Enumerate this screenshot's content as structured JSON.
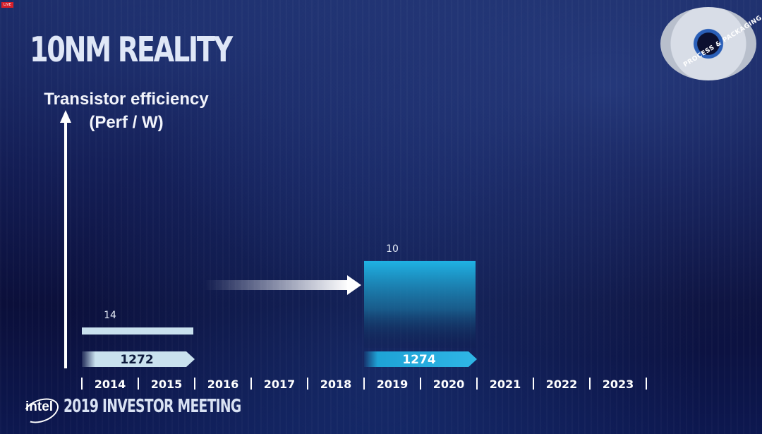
{
  "live_badge": "LIVE",
  "title": "10NM REALITY",
  "badge_text": "PROCESS & PACKAGING",
  "footer": {
    "logo": "intel",
    "event": "2019 INVESTOR MEETING"
  },
  "chart_data": {
    "type": "bar",
    "ylabel_line1": "Transistor efficiency",
    "ylabel_line2": "(Perf / W)",
    "categories": [
      "2014",
      "2015",
      "2016",
      "2017",
      "2018",
      "2019",
      "2020",
      "2021",
      "2022",
      "2023"
    ],
    "bars": [
      {
        "start": "2014",
        "end": "2015",
        "node_label": "14",
        "process": "1272",
        "relative_efficiency": 0.08,
        "color": "#c9e1ee"
      },
      {
        "start": "2019",
        "end": "2020",
        "node_label": "10",
        "process": "1274",
        "relative_efficiency": 0.34,
        "color": "#1ea3d6"
      }
    ],
    "transition_arrow": {
      "from": "2016",
      "to": "2018"
    },
    "colors": {
      "accent": "#2fb6e6",
      "text": "#ffffff",
      "background": "#0b0f3a"
    }
  }
}
